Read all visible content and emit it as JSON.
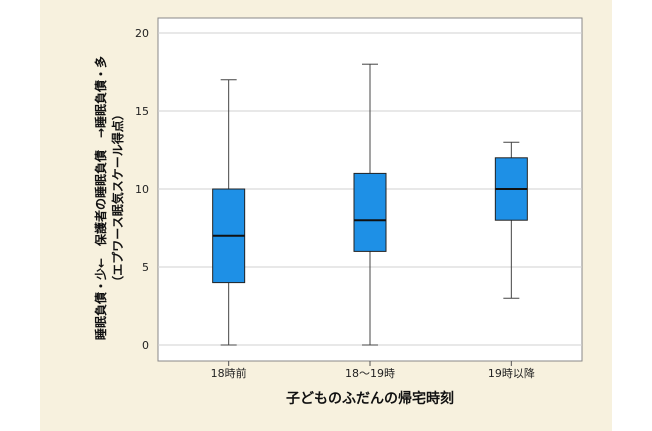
{
  "chart_data": {
    "type": "box",
    "xlabel": "子どものふだんの帰宅時刻",
    "ylabel_line1": "睡眠負債・少←　保護者の睡眠負債　→睡眠負債・多",
    "ylabel_line2": "（エプワース眠気スケール得点）",
    "ylim": [
      0,
      20
    ],
    "yticks": [
      0,
      5,
      10,
      15,
      20
    ],
    "grid": true,
    "color": "#1e90e6",
    "categories": [
      "18時前",
      "18〜19時",
      "19時以降"
    ],
    "boxes": [
      {
        "min": 0,
        "q1": 4,
        "median": 7,
        "q3": 10,
        "max": 17
      },
      {
        "min": 0,
        "q1": 6,
        "median": 8,
        "q3": 11,
        "max": 18
      },
      {
        "min": 3,
        "q1": 8,
        "median": 10,
        "q3": 12,
        "max": 13
      }
    ]
  }
}
